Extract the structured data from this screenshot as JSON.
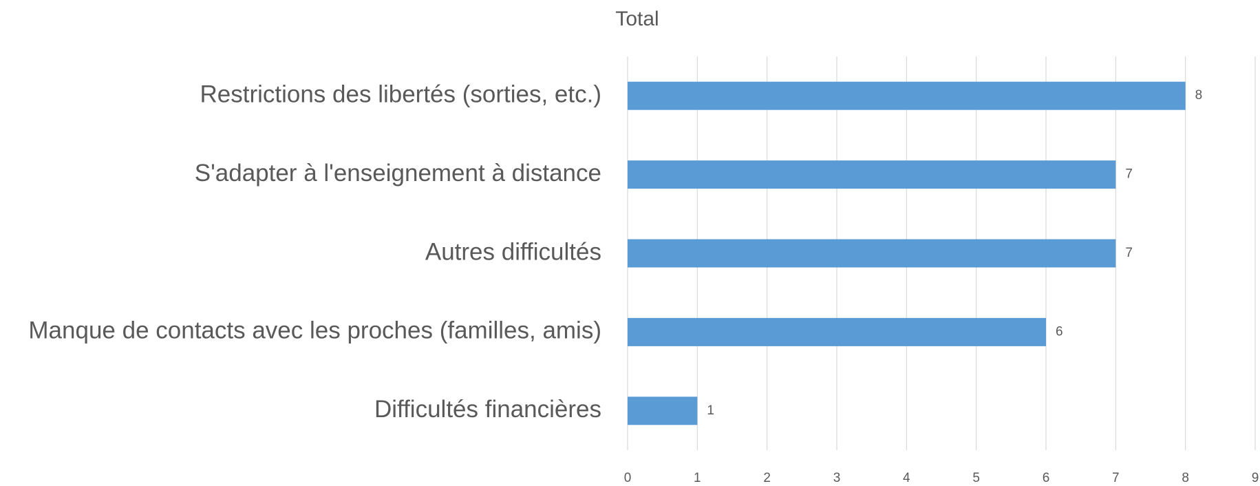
{
  "chart_data": {
    "type": "barh",
    "title": "Total",
    "categories": [
      "Restrictions des libertés (sorties, etc.)",
      "S'adapter à l'enseignement à distance",
      "Autres difficultés",
      "Manque de contacts avec les proches (familles, amis)",
      "Difficultés financières"
    ],
    "values": [
      8,
      7,
      7,
      6,
      1
    ],
    "color": "#5b9bd5",
    "xlim": [
      0,
      9
    ],
    "xticks": [
      0,
      1,
      2,
      3,
      4,
      5,
      6,
      7,
      8,
      9
    ],
    "grid": true
  }
}
